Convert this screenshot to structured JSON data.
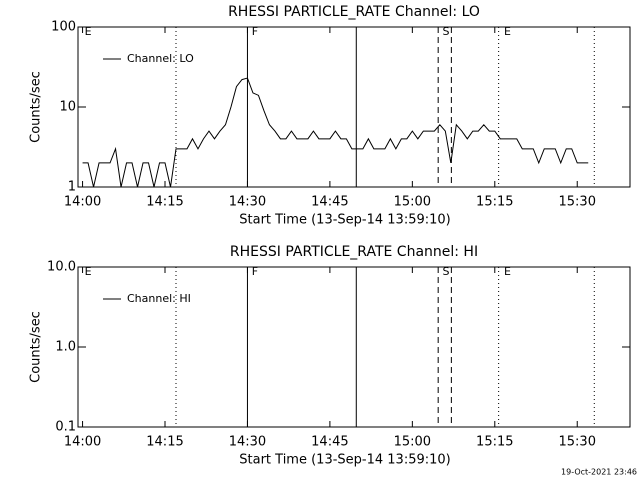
{
  "chart_data": [
    {
      "type": "line",
      "title": "RHESSI PARTICLE_RATE Channel: LO",
      "xlabel": "Start Time (13-Sep-14 13:59:10)",
      "ylabel": "Counts/sec",
      "xlim": [
        -0.83,
        99.6
      ],
      "xticks": [
        {
          "value": 0,
          "label": "14:00"
        },
        {
          "value": 15,
          "label": "14:15"
        },
        {
          "value": 30,
          "label": "14:30"
        },
        {
          "value": 45,
          "label": "14:45"
        },
        {
          "value": 60,
          "label": "15:00"
        },
        {
          "value": 75,
          "label": "15:15"
        },
        {
          "value": 90,
          "label": "15:30"
        }
      ],
      "ylim": [
        1,
        100
      ],
      "yticks": [
        1,
        10,
        100
      ],
      "log_y": true,
      "legend": "upper left",
      "x": [
        0,
        1,
        2,
        3,
        4,
        5,
        6,
        7,
        8,
        9,
        10,
        11,
        12,
        13,
        14,
        15,
        16,
        17,
        18,
        19,
        20,
        21,
        22,
        23,
        24,
        25,
        26,
        27,
        28,
        29,
        30,
        31,
        32,
        33,
        34,
        35,
        36,
        37,
        38,
        39,
        40,
        41,
        42,
        43,
        44,
        45,
        46,
        47,
        48,
        49,
        50,
        51,
        52,
        53,
        54,
        55,
        56,
        57,
        58,
        59,
        60,
        61,
        62,
        63,
        64,
        65,
        66,
        67,
        68,
        69,
        70,
        71,
        72,
        73,
        74,
        75,
        76,
        77,
        78,
        79,
        80,
        81,
        82,
        83,
        84,
        85,
        86,
        87,
        88,
        89,
        90,
        91,
        92
      ],
      "series": [
        {
          "name": "Channel: LO",
          "color": "#000000",
          "values": [
            2,
            2,
            1,
            2,
            2,
            2,
            3,
            1,
            2,
            2,
            1,
            2,
            2,
            1,
            2,
            2,
            1,
            3,
            3,
            3,
            4,
            3,
            4,
            5,
            4,
            5,
            6,
            10,
            18,
            22,
            23,
            15,
            14,
            9,
            6,
            5,
            4,
            4,
            5,
            4,
            4,
            4,
            5,
            4,
            4,
            4,
            5,
            4,
            4,
            3,
            3,
            3,
            4,
            3,
            3,
            3,
            4,
            3,
            4,
            4,
            5,
            4,
            5,
            5,
            5,
            6,
            5,
            2,
            6,
            5,
            4,
            5,
            5,
            6,
            5,
            5,
            4,
            4,
            4,
            4,
            3,
            3,
            3,
            2,
            3,
            3,
            3,
            2,
            3,
            3,
            2,
            2,
            2
          ]
        }
      ],
      "markers": [
        {
          "x": 17,
          "style": "dotted"
        },
        {
          "x": 30,
          "style": "solid"
        },
        {
          "x": 49.8,
          "style": "solid"
        },
        {
          "x": 64.7,
          "style": "dashed"
        },
        {
          "x": 67.1,
          "style": "dashed"
        },
        {
          "x": 75.7,
          "style": "dotted"
        },
        {
          "x": 93.1,
          "style": "dotted"
        }
      ],
      "annotations": [
        {
          "text": "E",
          "x": 0.2
        },
        {
          "text": "F",
          "x": 30.6
        },
        {
          "text": "S",
          "x": 65.3
        },
        {
          "text": "E",
          "x": 76.5
        }
      ]
    },
    {
      "type": "line",
      "title": "RHESSI PARTICLE_RATE Channel: HI",
      "xlabel": "Start Time (13-Sep-14 13:59:10)",
      "ylabel": "Counts/sec",
      "xlim": [
        -0.83,
        99.6
      ],
      "xticks": [
        {
          "value": 0,
          "label": "14:00"
        },
        {
          "value": 15,
          "label": "14:15"
        },
        {
          "value": 30,
          "label": "14:30"
        },
        {
          "value": 45,
          "label": "14:45"
        },
        {
          "value": 60,
          "label": "15:00"
        },
        {
          "value": 75,
          "label": "15:15"
        },
        {
          "value": 90,
          "label": "15:30"
        }
      ],
      "ylim": [
        0.1,
        10
      ],
      "yticks": [
        {
          "value": 0.1,
          "label": "0.1"
        },
        {
          "value": 1,
          "label": "1.0"
        },
        {
          "value": 10,
          "label": "10.0"
        }
      ],
      "log_y": true,
      "legend": "upper left",
      "x": [],
      "series": [
        {
          "name": "Channel: HI",
          "color": "#000000",
          "values": []
        }
      ],
      "markers": [
        {
          "x": 17,
          "style": "dotted"
        },
        {
          "x": 30,
          "style": "solid"
        },
        {
          "x": 49.8,
          "style": "solid"
        },
        {
          "x": 64.7,
          "style": "dashed"
        },
        {
          "x": 67.1,
          "style": "dashed"
        },
        {
          "x": 75.7,
          "style": "dotted"
        },
        {
          "x": 93.1,
          "style": "dotted"
        }
      ],
      "annotations": [
        {
          "text": "E",
          "x": 0.2
        },
        {
          "text": "F",
          "x": 30.6
        },
        {
          "text": "S",
          "x": 65.3
        },
        {
          "text": "E",
          "x": 76.5
        }
      ]
    }
  ],
  "footer": "19-Oct-2021 23:46"
}
